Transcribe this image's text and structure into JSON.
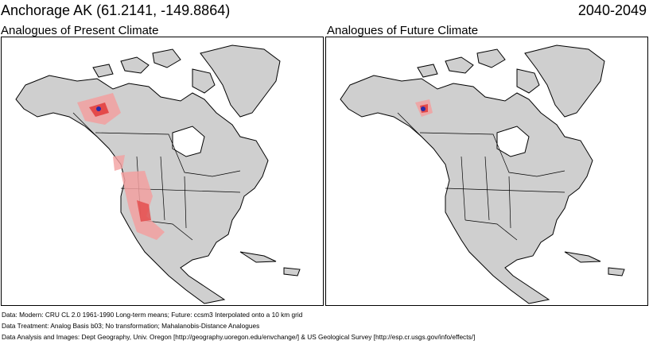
{
  "header": {
    "location": "Anchorage AK  (61.2141, -149.8864)",
    "period": "2040-2049"
  },
  "panels": [
    {
      "title": "Analogues of Present Climate"
    },
    {
      "title": "Analogues of Future Climate"
    }
  ],
  "notes": [
    "Data:  Modern: CRU CL 2.0 1961-1990 Long-term means; Future: ccsm3 Interpolated onto a 10 km grid",
    "Data Treatment:  Analog Basis b03; No transformation; Mahalanobis-Distance Analogues",
    "Data Analysis and Images:  Dept Geography, Univ. Oregon [http://geography.uoregon.edu/envchange/] & US Geological Survey [http://esp.cr.usgs.gov/info/effects/]"
  ],
  "colors": {
    "land": "#cfcfcf",
    "analog_light": "#f2a0a0",
    "analog_strong": "#e44a4a",
    "site": "#2a2aa8"
  }
}
